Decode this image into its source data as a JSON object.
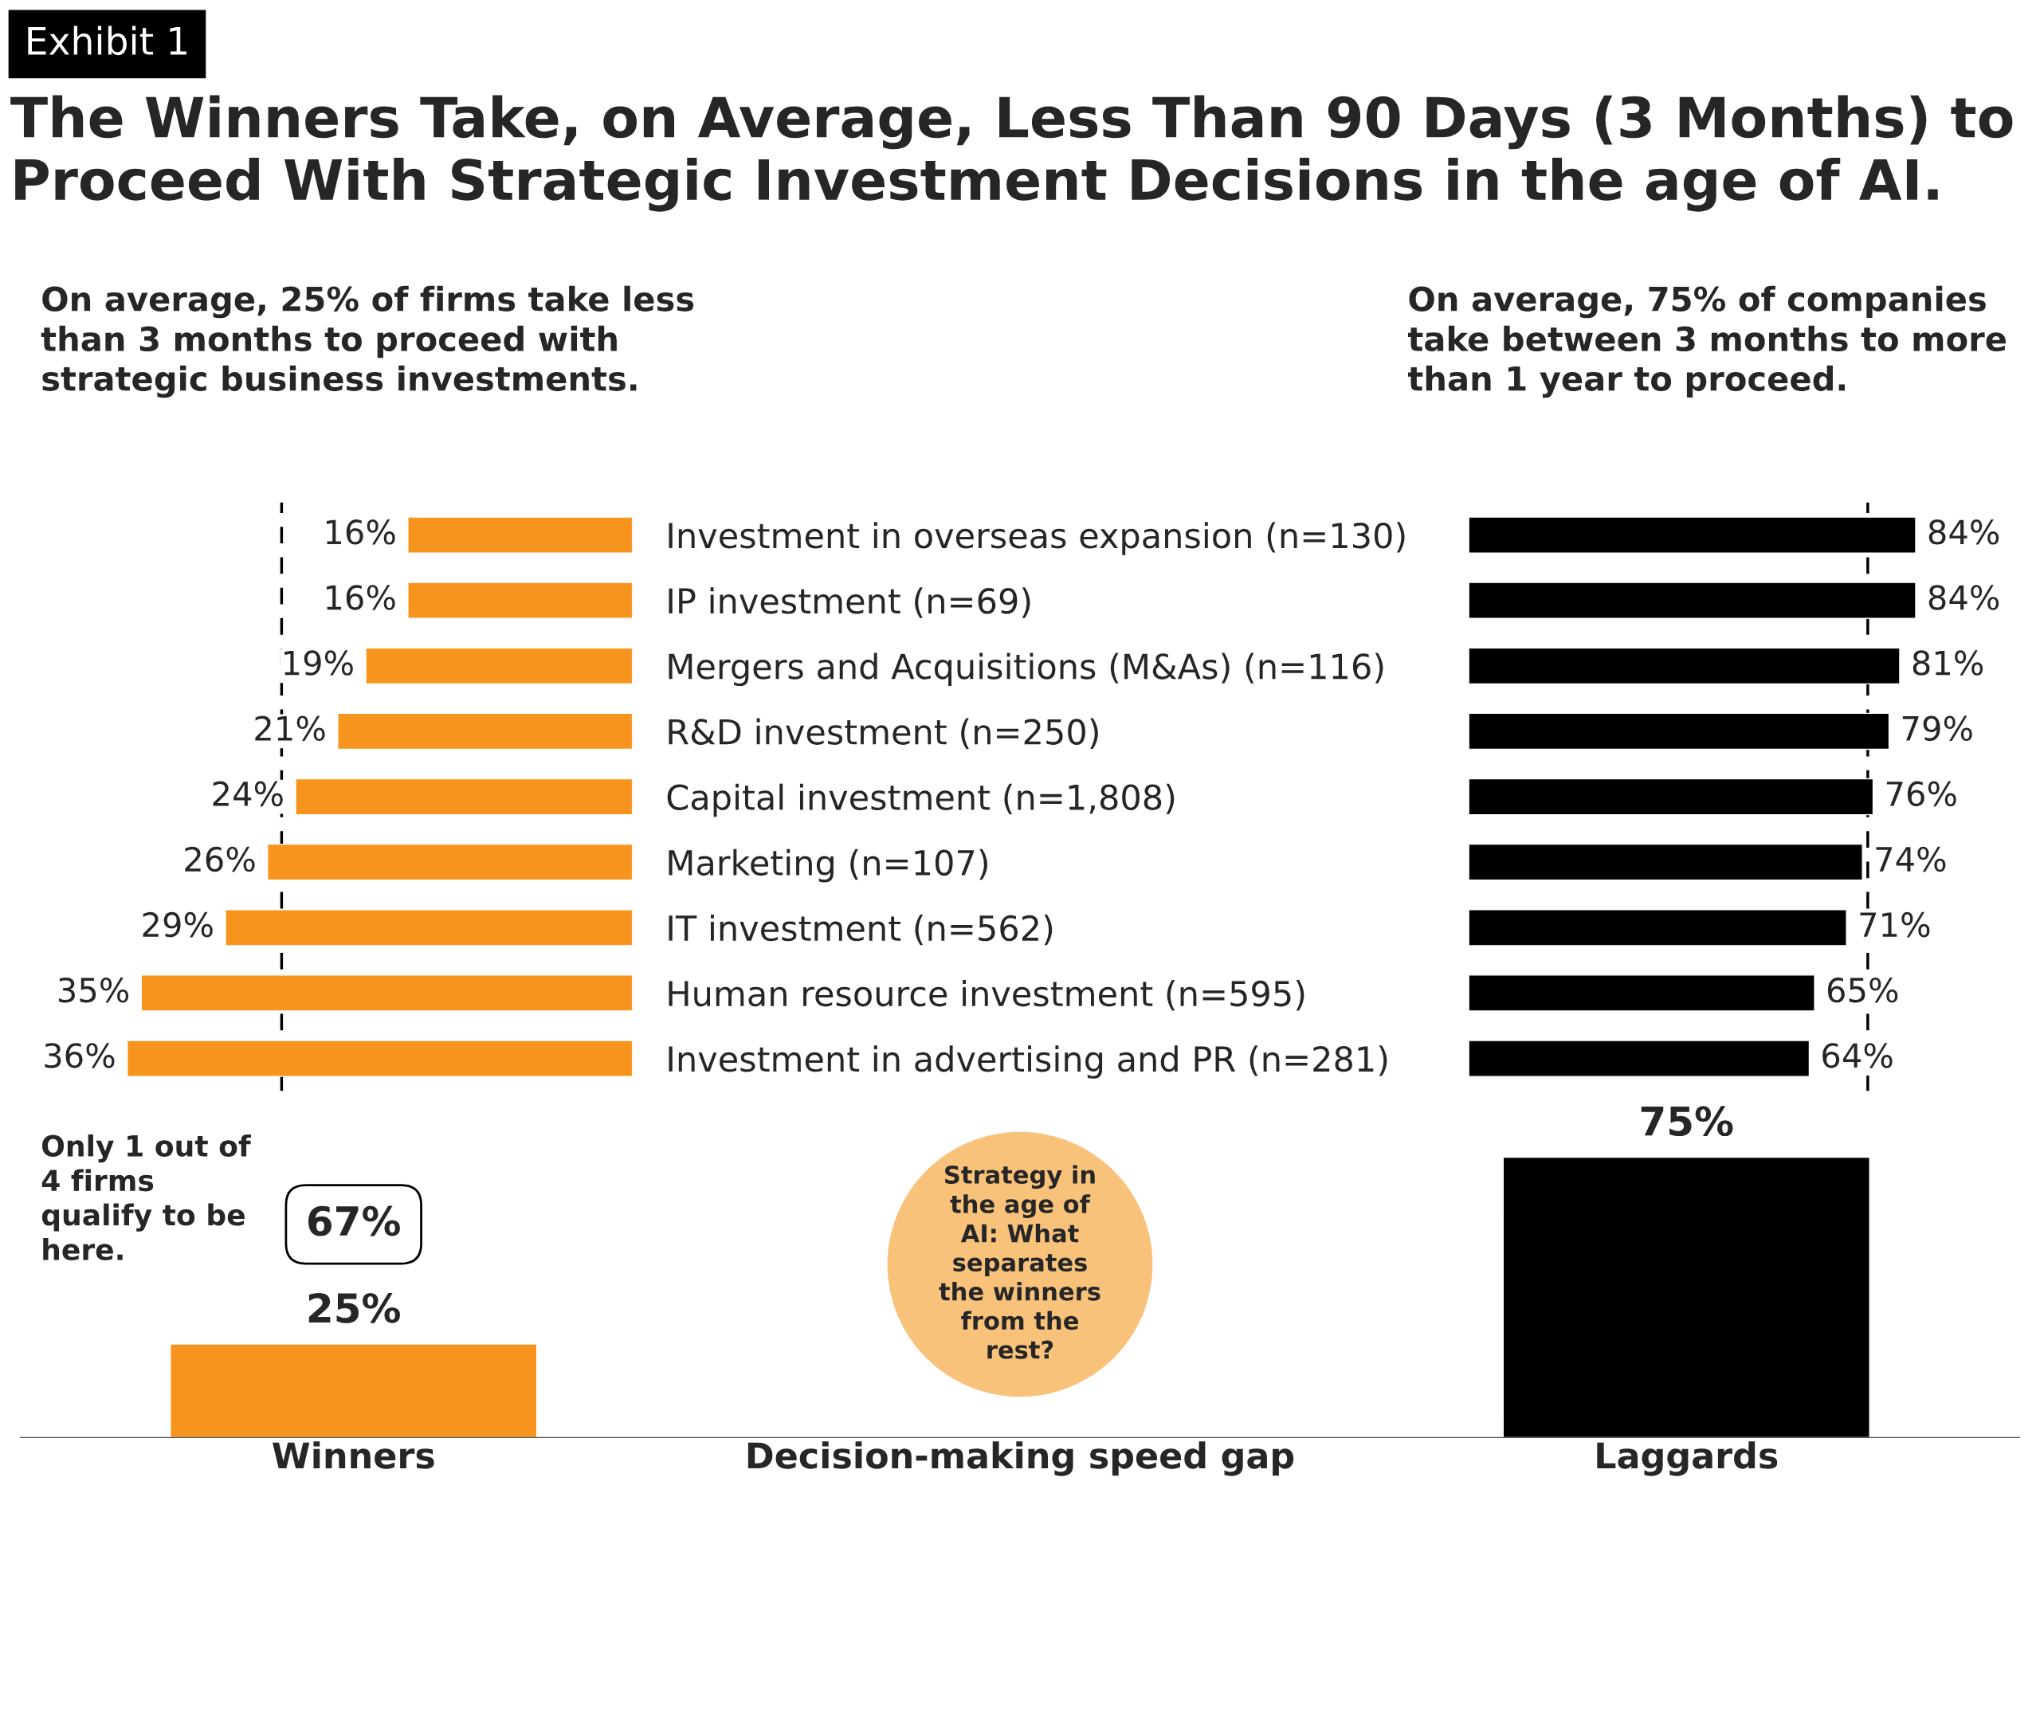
{
  "chart_data": [
    {
      "type": "bar",
      "orientation": "horizontal",
      "title": "The Winners Take, on Average, Less Than 90 Days (3 Months) to Proceed With Strategic Investment Decisions in the age of AI.",
      "subtitle": "On average, 25% of firms take less than 3 months to proceed with strategic business investments.",
      "annotations": [
        "Exhibit 1"
      ],
      "categories": [
        "Investment in overseas expansion (n=130)",
        "IP investment (n=69)",
        "Mergers and Acquisitions (M&As) (n=116)",
        "R&D investment (n=250)",
        "Capital investment (n=1,808)",
        "Marketing (n=107)",
        "IT investment (n=562)",
        "Human resource investment (n=595)",
        "Investment in advertising and PR (n=281)"
      ],
      "series": [
        {
          "color": "#f7941d",
          "values": [
            16,
            16,
            19,
            21,
            24,
            26,
            29,
            35,
            36
          ],
          "value_labels": [
            "16%",
            "16%",
            "19%",
            "21%",
            "24%",
            "26%",
            "29%",
            "35%",
            "36%"
          ]
        }
      ],
      "ref_lines": [
        {
          "axis": "x",
          "value": 25,
          "color": "#000000",
          "line_style": "dashed"
        }
      ],
      "tick_labels": "y"
    },
    {
      "type": "bar",
      "orientation": "horizontal",
      "subtitle": "On average, 75% of companies take between 3 months to more than 1 year to proceed.",
      "categories": [
        null,
        null,
        null,
        null,
        null,
        null,
        null,
        null,
        null
      ],
      "series": [
        {
          "color": "#000000",
          "values": [
            84,
            84,
            81,
            79,
            76,
            74,
            71,
            65,
            64
          ],
          "value_labels": [
            "84%",
            "84%",
            "81%",
            "79%",
            "76%",
            "74%",
            "71%",
            "65%",
            "64%"
          ]
        }
      ],
      "ref_lines": [
        {
          "axis": "x",
          "value": 75,
          "color": "#000000",
          "line_style": "dashed"
        }
      ],
      "tick_labels": false
    },
    {
      "type": "bar",
      "categories": [
        "Winners",
        "Decision-making speed gap",
        "Laggards"
      ],
      "series": [
        {
          "colors": [
            "#f7941d",
            null,
            "#000000"
          ],
          "values": [
            25,
            null,
            75
          ],
          "value_labels": [
            "25%",
            null,
            "75%"
          ]
        }
      ],
      "tick_labels": "x",
      "annotations": [
        "Only 1 out of 4 firms qualify to be here.",
        "67%",
        "Strategy in the age of AI: What separates the winners from the rest?"
      ]
    }
  ]
}
